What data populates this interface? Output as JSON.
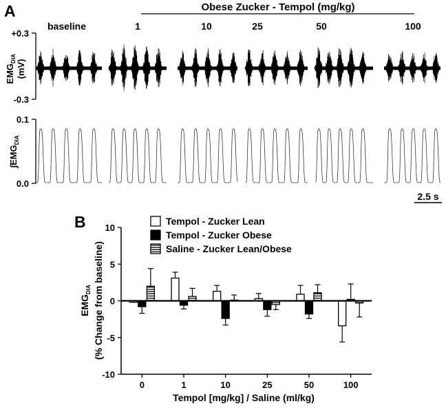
{
  "panel_a": {
    "label": "A",
    "header_line_label": "Obese Zucker - Tempol (mg/kg)",
    "conditions": [
      "baseline",
      "1",
      "10",
      "25",
      "50",
      "100"
    ],
    "emg_ylabel_main": "EMG",
    "emg_ylabel_sub": "DIA",
    "emg_ylabel_unit": "(mV)",
    "emg_y_top": "+0.3",
    "emg_y_bottom": "-0.3",
    "int_ylabel_prefix": "∫EMG",
    "int_ylabel_sub": "DIA",
    "int_y_top": "0.1",
    "int_y_bottom": "0.0",
    "scale_bar_label": "2.5 s"
  },
  "chart_data": {
    "type": "bar",
    "panel_label": "B",
    "categories": [
      "0",
      "1",
      "10",
      "25",
      "50",
      "100"
    ],
    "xlabel": "Tempol [mg/kg] / Saline (ml/kg)",
    "ylabel_main": "EMG",
    "ylabel_sub": "DIA",
    "ylabel_line2": "(% Change from baseline)",
    "ylim": [
      -10,
      10
    ],
    "yticks": [
      -10,
      -5,
      0,
      5,
      10
    ],
    "legend_position": "top",
    "series": [
      {
        "name": "Tempol - Zucker Lean",
        "style": "open",
        "values": [
          -0.2,
          3.1,
          1.3,
          0.3,
          0.9,
          -3.4
        ],
        "errors": [
          0,
          0.8,
          0.8,
          0.7,
          1.2,
          2.2
        ]
      },
      {
        "name": "Tempol - Zucker Obese",
        "style": "filled",
        "values": [
          -0.8,
          -0.6,
          -2.4,
          -1.2,
          -1.8,
          0.2
        ],
        "errors": [
          0.9,
          0.5,
          0.9,
          0.9,
          0.6,
          2.1
        ]
      },
      {
        "name": "Saline - Zucker Lean/Obese",
        "style": "striped",
        "values": [
          2.0,
          0.6,
          0.1,
          -0.5,
          1.1,
          -0.3
        ],
        "errors": [
          2.4,
          1.1,
          0.7,
          0.7,
          1.1,
          1.9
        ]
      }
    ]
  }
}
